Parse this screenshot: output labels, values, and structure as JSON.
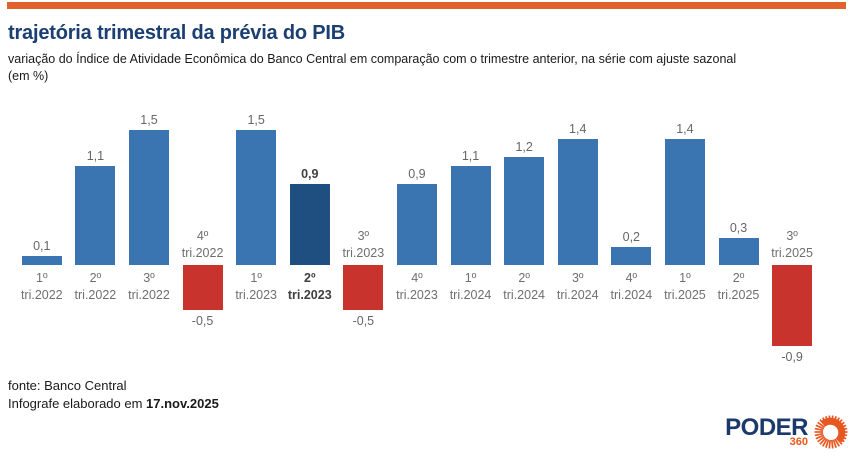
{
  "theme": {
    "topbar": "#E2622C",
    "title": "#1B3F72",
    "text": "#1A1A1A",
    "value-label": "#666666",
    "category-label": "#6F6F6F",
    "highlight-label": "#3F3F3F",
    "logo-navy": "#1B3A6B",
    "logo-orange": "#E8571F"
  },
  "header": {
    "title": "trajetória trimestral da prévia do PIB",
    "subtitle_lines": [
      "variação do Índice de Atividade Econômica do Banco Central em comparação com o trimestre anterior, na série com ajuste sazonal",
      "(em %)"
    ]
  },
  "chart_data": {
    "type": "bar",
    "title": "trajetória trimestral da prévia do PIB",
    "unit": "%",
    "ylim": [
      -1.0,
      1.7
    ],
    "grid": false,
    "legend": false,
    "categories": [
      "1º tri.2022",
      "2º tri.2022",
      "3º tri.2022",
      "4º tri.2022",
      "1º tri.2023",
      "2º tri.2023",
      "3º tri.2023",
      "4º tri.2023",
      "1º tri.2024",
      "2º tri.2024",
      "3º tri.2024",
      "4º tri.2024",
      "1º tri.2025",
      "2º tri.2025",
      "3º tri.2025"
    ],
    "values": [
      0.1,
      1.1,
      1.5,
      -0.5,
      1.5,
      0.9,
      -0.5,
      0.9,
      1.1,
      1.2,
      1.4,
      0.2,
      1.4,
      0.3,
      -0.9
    ],
    "highlight_index": 5,
    "colors": {
      "positive": "#3A75B2",
      "negative": "#C8332E",
      "highlight": "#1F4E80"
    },
    "points": [
      {
        "quarter": "1º",
        "period": "tri.2022",
        "value": 0.1,
        "label": "0,1"
      },
      {
        "quarter": "2º",
        "period": "tri.2022",
        "value": 1.1,
        "label": "1,1"
      },
      {
        "quarter": "3º",
        "period": "tri.2022",
        "value": 1.5,
        "label": "1,5"
      },
      {
        "quarter": "4º",
        "period": "tri.2022",
        "value": -0.5,
        "label": "-0,5"
      },
      {
        "quarter": "1º",
        "period": "tri.2023",
        "value": 1.5,
        "label": "1,5"
      },
      {
        "quarter": "2º",
        "period": "tri.2023",
        "value": 0.9,
        "label": "0,9"
      },
      {
        "quarter": "3º",
        "period": "tri.2023",
        "value": -0.5,
        "label": "-0,5"
      },
      {
        "quarter": "4º",
        "period": "tri.2023",
        "value": 0.9,
        "label": "0,9"
      },
      {
        "quarter": "1º",
        "period": "tri.2024",
        "value": 1.1,
        "label": "1,1"
      },
      {
        "quarter": "2º",
        "period": "tri.2024",
        "value": 1.2,
        "label": "1,2"
      },
      {
        "quarter": "3º",
        "period": "tri.2024",
        "value": 1.4,
        "label": "1,4"
      },
      {
        "quarter": "4º",
        "period": "tri.2024",
        "value": 0.2,
        "label": "0,2"
      },
      {
        "quarter": "1º",
        "period": "tri.2025",
        "value": 1.4,
        "label": "1,4"
      },
      {
        "quarter": "2º",
        "period": "tri.2025",
        "value": 0.3,
        "label": "0,3"
      },
      {
        "quarter": "3º",
        "period": "tri.2025",
        "value": -0.9,
        "label": "-0,9"
      }
    ]
  },
  "footer": {
    "source": "fonte: Banco Central",
    "credit_prefix": "Infografe elaborado em ",
    "credit_date": "17.nov.2025"
  },
  "logo": {
    "wordmark": "PODER",
    "number": "360"
  }
}
